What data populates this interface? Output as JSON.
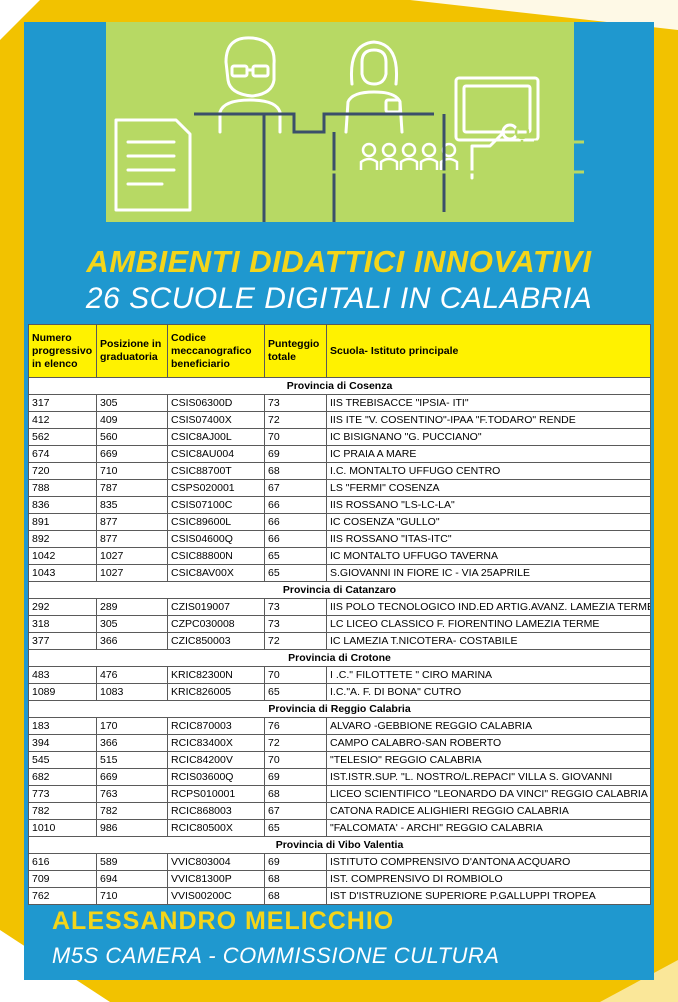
{
  "colors": {
    "accent_yellow": "#f4d51a",
    "panel_blue": "#1f98cf",
    "hero_green": "#b7d964",
    "header_yellow": "#fff200"
  },
  "illustration_icons": [
    "man-with-glasses-icon",
    "woman-icon",
    "document-icon",
    "presentation-board-icon",
    "audience-icon",
    "desk-icon"
  ],
  "title": "AMBIENTI DIDATTICI INNOVATIVI",
  "subtitle": "26 SCUOLE DIGITALI IN CALABRIA",
  "table": {
    "headers": [
      "Numero progressivo in elenco",
      "Posizione in graduatoria",
      "Codice meccanografico beneficiario",
      "Punteggio totale",
      "Scuola- Istituto principale"
    ],
    "groups": [
      {
        "province": "Provincia di Cosenza",
        "rows": [
          [
            "317",
            "305",
            "CSIS06300D",
            "73",
            "IIS TREBISACCE \"IPSIA- ITI\""
          ],
          [
            "412",
            "409",
            "CSIS07400X",
            "72",
            "IIS ITE \"V. COSENTINO\"-IPAA \"F.TODARO\" RENDE"
          ],
          [
            "562",
            "560",
            "CSIC8AJ00L",
            "70",
            "IC BISIGNANO \"G. PUCCIANO\""
          ],
          [
            "674",
            "669",
            "CSIC8AU004",
            "69",
            "IC PRAIA A MARE"
          ],
          [
            "720",
            "710",
            "CSIC88700T",
            "68",
            "I.C. MONTALTO UFFUGO CENTRO"
          ],
          [
            "788",
            "787",
            "CSPS020001",
            "67",
            "LS \"FERMI\" COSENZA"
          ],
          [
            "836",
            "835",
            "CSIS07100C",
            "66",
            "IIS ROSSANO \"LS-LC-LA\""
          ],
          [
            "891",
            "877",
            "CSIC89600L",
            "66",
            "IC COSENZA \"GULLO\""
          ],
          [
            "892",
            "877",
            "CSIS04600Q",
            "66",
            "IIS ROSSANO \"ITAS-ITC\""
          ],
          [
            "1042",
            "1027",
            "CSIC88800N",
            "65",
            "IC MONTALTO UFFUGO TAVERNA"
          ],
          [
            "1043",
            "1027",
            "CSIC8AV00X",
            "65",
            "S.GIOVANNI IN FIORE IC - VIA 25APRILE"
          ]
        ]
      },
      {
        "province": "Provincia di Catanzaro",
        "rows": [
          [
            "292",
            "289",
            "CZIS019007",
            "73",
            "IIS POLO TECNOLOGICO IND.ED ARTIG.AVANZ. LAMEZIA TERME"
          ],
          [
            "318",
            "305",
            "CZPC030008",
            "73",
            "LC LICEO CLASSICO F. FIORENTINO LAMEZIA TERME"
          ],
          [
            "377",
            "366",
            "CZIC850003",
            "72",
            "IC LAMEZIA T.NICOTERA- COSTABILE"
          ]
        ]
      },
      {
        "province": "Provincia di Crotone",
        "rows": [
          [
            "483",
            "476",
            "KRIC82300N",
            "70",
            "I .C.\" FILOTTETE \" CIRO MARINA"
          ],
          [
            "1089",
            "1083",
            "KRIC826005",
            "65",
            "I.C.\"A. F. DI BONA\" CUTRO"
          ]
        ]
      },
      {
        "province": "Provincia di Reggio Calabria",
        "rows": [
          [
            "183",
            "170",
            "RCIC870003",
            "76",
            "ALVARO -GEBBIONE REGGIO CALABRIA"
          ],
          [
            "394",
            "366",
            "RCIC83400X",
            "72",
            "CAMPO CALABRO-SAN ROBERTO"
          ],
          [
            "545",
            "515",
            "RCIC84200V",
            "70",
            "\"TELESIO\" REGGIO CALABRIA"
          ],
          [
            "682",
            "669",
            "RCIS03600Q",
            "69",
            "IST.ISTR.SUP. \"L. NOSTRO/L.REPACI\" VILLA S. GIOVANNI"
          ],
          [
            "773",
            "763",
            "RCPS010001",
            "68",
            "LICEO SCIENTIFICO \"LEONARDO DA VINCI\" REGGIO CALABRIA"
          ],
          [
            "782",
            "782",
            "RCIC868003",
            "67",
            "CATONA RADICE ALIGHIERI REGGIO CALABRIA"
          ],
          [
            "1010",
            "986",
            "RCIC80500X",
            "65",
            "\"FALCOMATA' - ARCHI\" REGGIO CALABRIA"
          ]
        ]
      },
      {
        "province": "Provincia di Vibo Valentia",
        "rows": [
          [
            "616",
            "589",
            "VVIC803004",
            "69",
            "ISTITUTO COMPRENSIVO D'ANTONA ACQUARO"
          ],
          [
            "709",
            "694",
            "VVIC81300P",
            "68",
            "IST. COMPRENSIVO DI ROMBIOLO"
          ],
          [
            "762",
            "710",
            "VVIS00200C",
            "68",
            "IST D'ISTRUZIONE SUPERIORE P.GALLUPPI TROPEA"
          ]
        ]
      }
    ]
  },
  "footer": {
    "name": "ALESSANDRO MELICCHIO",
    "role": "M5S CAMERA - COMMISSIONE CULTURA"
  }
}
